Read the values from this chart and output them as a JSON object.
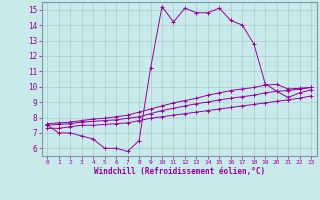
{
  "xlabel": "Windchill (Refroidissement éolien,°C)",
  "xlim": [
    -0.5,
    23.5
  ],
  "ylim": [
    5.5,
    15.5
  ],
  "xticks": [
    0,
    1,
    2,
    3,
    4,
    5,
    6,
    7,
    8,
    9,
    10,
    11,
    12,
    13,
    14,
    15,
    16,
    17,
    18,
    19,
    20,
    21,
    22,
    23
  ],
  "yticks": [
    6,
    7,
    8,
    9,
    10,
    11,
    12,
    13,
    14,
    15
  ],
  "background_color": "#c8eaea",
  "line_color": "#990099",
  "grid_color": "#aacccc",
  "series": [
    {
      "x": [
        0,
        1,
        2,
        3,
        4,
        5,
        6,
        7,
        8,
        9,
        10,
        11,
        12,
        13,
        14,
        15,
        16,
        17,
        18,
        19,
        20,
        21,
        22,
        23
      ],
      "y": [
        7.5,
        7.0,
        7.0,
        6.8,
        6.6,
        6.0,
        6.0,
        5.8,
        6.5,
        11.2,
        15.2,
        14.2,
        15.1,
        14.8,
        14.8,
        15.1,
        14.3,
        14.0,
        12.8,
        10.2,
        9.7,
        9.3,
        9.6,
        9.8
      ]
    },
    {
      "x": [
        0,
        1,
        2,
        3,
        4,
        5,
        6,
        7,
        8,
        9,
        10,
        11,
        12,
        13,
        14,
        15,
        16,
        17,
        18,
        19,
        20,
        21,
        22,
        23
      ],
      "y": [
        7.3,
        7.3,
        7.4,
        7.5,
        7.5,
        7.55,
        7.6,
        7.65,
        7.8,
        7.95,
        8.05,
        8.15,
        8.25,
        8.35,
        8.45,
        8.55,
        8.65,
        8.75,
        8.85,
        8.95,
        9.05,
        9.15,
        9.25,
        9.4
      ]
    },
    {
      "x": [
        0,
        1,
        2,
        3,
        4,
        5,
        6,
        7,
        8,
        9,
        10,
        11,
        12,
        13,
        14,
        15,
        16,
        17,
        18,
        19,
        20,
        21,
        22,
        23
      ],
      "y": [
        7.5,
        7.55,
        7.6,
        7.7,
        7.75,
        7.8,
        7.85,
        7.95,
        8.05,
        8.25,
        8.45,
        8.6,
        8.75,
        8.9,
        9.0,
        9.15,
        9.25,
        9.35,
        9.45,
        9.6,
        9.7,
        9.75,
        9.85,
        9.95
      ]
    },
    {
      "x": [
        0,
        1,
        2,
        3,
        4,
        5,
        6,
        7,
        8,
        9,
        10,
        11,
        12,
        13,
        14,
        15,
        16,
        17,
        18,
        19,
        20,
        21,
        22,
        23
      ],
      "y": [
        7.6,
        7.65,
        7.7,
        7.8,
        7.9,
        7.95,
        8.05,
        8.15,
        8.35,
        8.55,
        8.75,
        8.95,
        9.1,
        9.25,
        9.45,
        9.6,
        9.75,
        9.85,
        9.95,
        10.1,
        10.15,
        9.85,
        9.9,
        9.95
      ]
    }
  ]
}
